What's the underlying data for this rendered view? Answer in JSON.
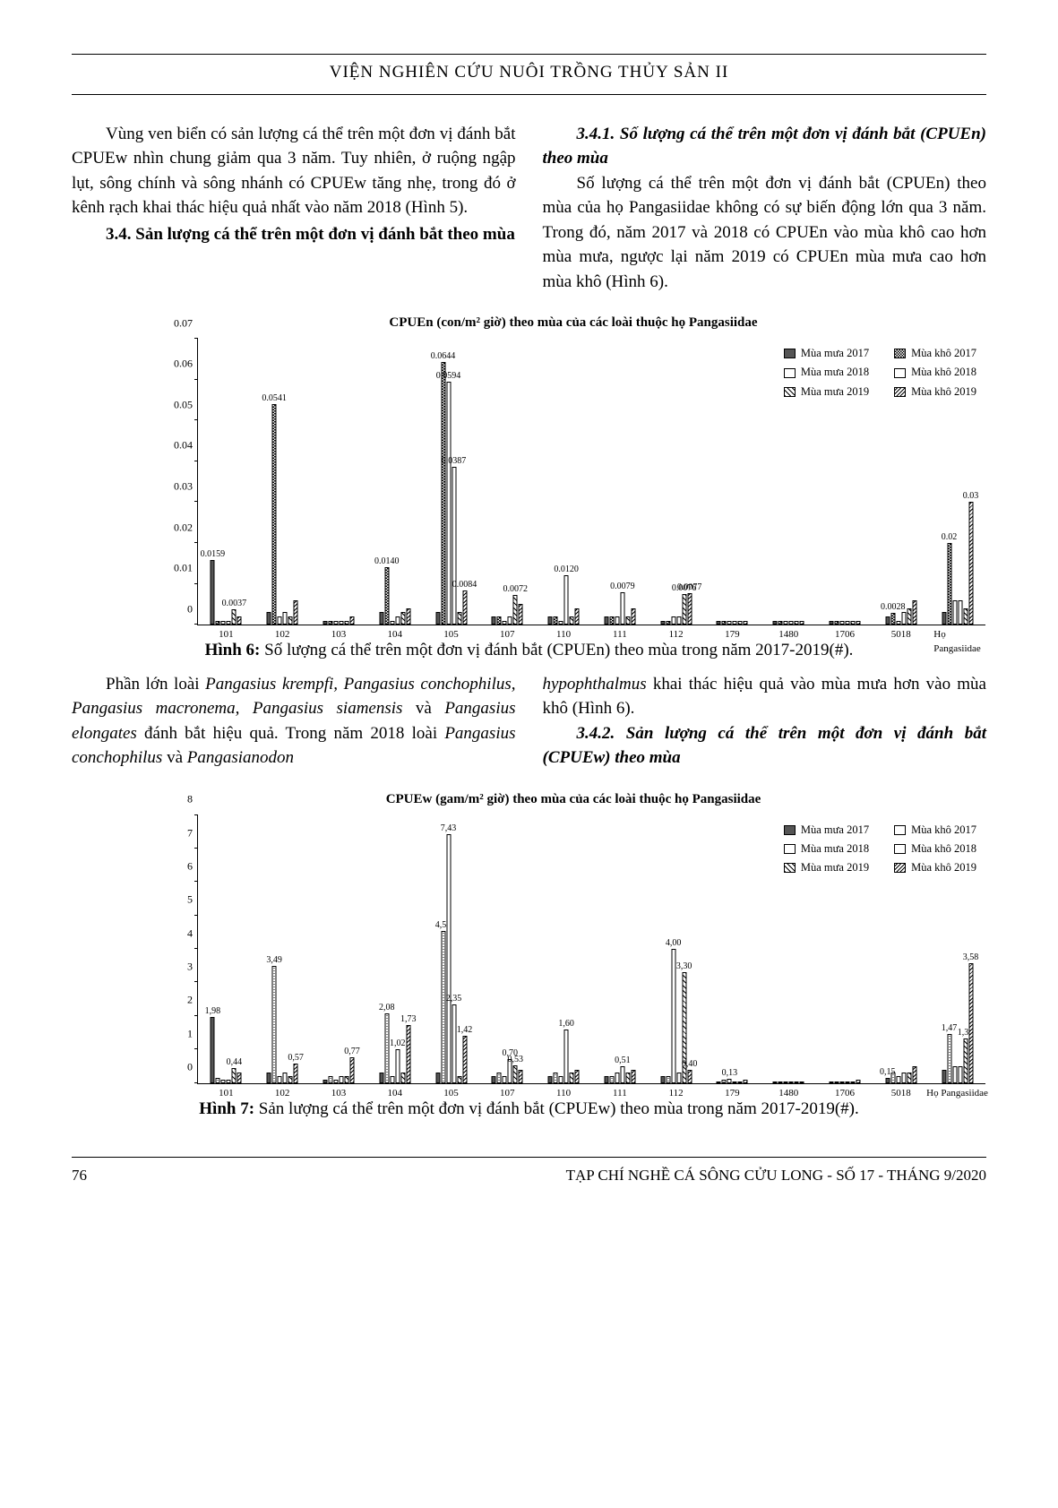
{
  "header": {
    "title": "VIỆN NGHIÊN CỨU NUÔI TRỒNG THỦY SẢN II"
  },
  "p1": "Vùng ven biển có sản lượng cá thể trên một đơn vị đánh bắt CPUEw nhìn chung giảm qua 3 năm. Tuy nhiên, ở ruộng ngập lụt, sông chính và sông nhánh có CPUEw tăng nhẹ, trong đó ở kênh rạch khai thác hiệu quả nhất vào năm 2018 (Hình 5).",
  "s34": "3.4. Sản lượng cá thể trên một đơn vị đánh bắt theo mùa",
  "s341": "3.4.1. Số lượng cá thể trên một đơn vị đánh bắt (CPUEn) theo mùa",
  "p2": "Số lượng cá thể trên một đơn vị đánh bắt (CPUEn) theo mùa của họ Pangasiidae không có sự biến động lớn qua 3 năm. Trong đó, năm 2017 và 2018 có CPUEn vào mùa khô cao hơn mùa mưa, ngược lại năm 2019 có CPUEn mùa mưa cao hơn mùa khô (Hình 6).",
  "p3a": "Phần lớn loài ",
  "p3b": "Pangasius krempfi, Pangasius conchophilus, Pangasius macronema, Pangasius siamensis",
  "p3c": " và ",
  "p3d": "Pangasius elongates",
  "p3e": " đánh bắt hiệu quả. Trong năm 2018 loài ",
  "p3f": "Pangasius conchophilus",
  "p3g": " và ",
  "p3h": "Pangasianodon",
  "p4a": "hypophthalmus",
  "p4b": " khai thác hiệu quả vào mùa mưa hơn vào mùa khô (Hình 6).",
  "s342": "3.4.2. Sản lượng cá thể trên một đơn vị đánh bắt (CPUEw) theo mùa",
  "chart6": {
    "title": "CPUEn (con/m² giờ) theo mùa của các loài thuộc họ Pangasiidae",
    "ymax": 0.07,
    "yticks": [
      "0",
      "0.01",
      "0.02",
      "0.03",
      "0.04",
      "0.05",
      "0.06",
      "0.07"
    ],
    "legend": [
      {
        "label": "Mùa mưa 2017",
        "cls": "p-solid"
      },
      {
        "label": "Mùa khô 2017",
        "cls": "p-dots"
      },
      {
        "label": "Mùa mưa 2018",
        "cls": "p-white"
      },
      {
        "label": "Mùa khô 2018",
        "cls": "p-white"
      },
      {
        "label": "Mùa mưa 2019",
        "cls": "p-diag"
      },
      {
        "label": "Mùa khô 2019",
        "cls": "p-hatch"
      }
    ],
    "categories": [
      "101",
      "102",
      "103",
      "104",
      "105",
      "107",
      "110",
      "111",
      "112",
      "179",
      "1480",
      "1706",
      "5018",
      "Họ\nPangasiidae"
    ],
    "series_cls": [
      "p-solid",
      "p-dots",
      "p-white",
      "p-white",
      "p-diag",
      "p-hatch"
    ],
    "data": [
      {
        "vals": [
          0.0159,
          0.001,
          0.001,
          0.001,
          0.0037,
          0.002
        ],
        "labels": [
          "0.0159",
          "",
          "",
          "",
          "0.0037",
          ""
        ]
      },
      {
        "vals": [
          0.003,
          0.0541,
          0.002,
          0.003,
          0.002,
          0.006
        ],
        "labels": [
          "",
          "0.0541",
          "",
          "",
          "",
          ""
        ]
      },
      {
        "vals": [
          0.001,
          0.001,
          0.001,
          0.001,
          0.001,
          0.002
        ],
        "labels": [
          "",
          "",
          "",
          "",
          "",
          ""
        ]
      },
      {
        "vals": [
          0.003,
          0.014,
          0.001,
          0.002,
          0.003,
          0.004
        ],
        "labels": [
          "",
          "0.0140",
          "",
          "",
          "",
          ""
        ]
      },
      {
        "vals": [
          0.003,
          0.0644,
          0.0594,
          0.0387,
          0.003,
          0.0084
        ],
        "labels": [
          "",
          "0.0644",
          "0.0594",
          "0.0387",
          "",
          "0.0084"
        ]
      },
      {
        "vals": [
          0.002,
          0.002,
          0.001,
          0.002,
          0.0072,
          0.005
        ],
        "labels": [
          "",
          "",
          "",
          "",
          "0.0072",
          ""
        ]
      },
      {
        "vals": [
          0.002,
          0.002,
          0.001,
          0.012,
          0.002,
          0.004
        ],
        "labels": [
          "",
          "",
          "",
          "0.0120",
          "",
          ""
        ]
      },
      {
        "vals": [
          0.002,
          0.002,
          0.002,
          0.0079,
          0.002,
          0.004
        ],
        "labels": [
          "",
          "",
          "",
          "0.0079",
          "",
          ""
        ]
      },
      {
        "vals": [
          0.001,
          0.001,
          0.002,
          0.002,
          0.0076,
          0.0077
        ],
        "labels": [
          "",
          "",
          "",
          "",
          "0.0076",
          "0.0077"
        ]
      },
      {
        "vals": [
          0.001,
          0.001,
          0.001,
          0.001,
          0.001,
          0.001
        ],
        "labels": [
          "",
          "",
          "",
          "",
          "",
          ""
        ]
      },
      {
        "vals": [
          0.001,
          0.001,
          0.001,
          0.001,
          0.001,
          0.001
        ],
        "labels": [
          "",
          "",
          "",
          "",
          "",
          ""
        ]
      },
      {
        "vals": [
          0.001,
          0.001,
          0.001,
          0.001,
          0.001,
          0.001
        ],
        "labels": [
          "",
          "",
          "",
          "",
          "",
          ""
        ]
      },
      {
        "vals": [
          0.002,
          0.0028,
          0.001,
          0.003,
          0.004,
          0.006
        ],
        "labels": [
          "",
          "0.0028",
          "",
          "",
          "",
          ""
        ]
      },
      {
        "vals": [
          0.003,
          0.02,
          0.006,
          0.006,
          0.004,
          0.03
        ],
        "labels": [
          "",
          "0.02",
          "",
          "",
          "",
          "0.03"
        ]
      }
    ]
  },
  "cap6b": "Hình 6: ",
  "cap6t": "Số lượng cá thể trên một đơn vị đánh bắt (CPUEn) theo mùa trong năm 2017-2019(#).",
  "chart7": {
    "title": "CPUEw (gam/m² giờ) theo mùa của các loài thuộc họ Pangasiidae",
    "ymax": 8,
    "yticks": [
      "0",
      "1",
      "2",
      "3",
      "4",
      "5",
      "6",
      "7",
      "8"
    ],
    "legend": [
      {
        "label": "Mùa mưa 2017",
        "cls": "p-solid"
      },
      {
        "label": "Mùa khô 2017",
        "cls": "p-white"
      },
      {
        "label": "Mùa mưa 2018",
        "cls": "p-white"
      },
      {
        "label": "Mùa khô 2018",
        "cls": "p-white"
      },
      {
        "label": "Mùa mưa 2019",
        "cls": "p-diag"
      },
      {
        "label": "Mùa khô 2019",
        "cls": "p-hatch"
      }
    ],
    "categories": [
      "101",
      "102",
      "103",
      "104",
      "105",
      "107",
      "110",
      "111",
      "112",
      "179",
      "1480",
      "1706",
      "5018",
      "Họ Pangasiidae"
    ],
    "series_cls": [
      "p-solid",
      "p-ldots",
      "p-white",
      "p-white",
      "p-diag",
      "p-hatch"
    ],
    "data": [
      {
        "vals": [
          1.98,
          0.15,
          0.1,
          0.1,
          0.44,
          0.3
        ],
        "labels": [
          "1,98",
          "",
          "",
          "",
          "0,44",
          ""
        ]
      },
      {
        "vals": [
          0.3,
          3.49,
          0.2,
          0.3,
          0.2,
          0.57
        ],
        "labels": [
          "",
          "3,49",
          "",
          "",
          "",
          "0,57"
        ]
      },
      {
        "vals": [
          0.1,
          0.2,
          0.1,
          0.2,
          0.2,
          0.77
        ],
        "labels": [
          "",
          "",
          "",
          "",
          "",
          "0,77"
        ]
      },
      {
        "vals": [
          0.3,
          2.08,
          0.2,
          1.02,
          0.3,
          1.73
        ],
        "labels": [
          "",
          "2,08",
          "",
          "1,02",
          "",
          "1,73"
        ]
      },
      {
        "vals": [
          0.3,
          4.55,
          7.43,
          2.35,
          0.2,
          1.42
        ],
        "labels": [
          "",
          "4,55",
          "7,43",
          "2,35",
          "",
          "1,42"
        ]
      },
      {
        "vals": [
          0.2,
          0.3,
          0.2,
          0.7,
          0.53,
          0.4
        ],
        "labels": [
          "",
          "",
          "",
          "0,70",
          "0,53",
          ""
        ]
      },
      {
        "vals": [
          0.2,
          0.3,
          0.2,
          1.6,
          0.3,
          0.4
        ],
        "labels": [
          "",
          "",
          "",
          "1,60",
          "",
          ""
        ]
      },
      {
        "vals": [
          0.2,
          0.2,
          0.3,
          0.51,
          0.3,
          0.4
        ],
        "labels": [
          "",
          "",
          "",
          "0,51",
          "",
          ""
        ]
      },
      {
        "vals": [
          0.2,
          0.2,
          4.0,
          0.3,
          3.3,
          0.4
        ],
        "labels": [
          "",
          "",
          "4,00",
          "",
          "3,30",
          "0,40"
        ]
      },
      {
        "vals": [
          0.05,
          0.1,
          0.13,
          0.05,
          0.05,
          0.1
        ],
        "labels": [
          "",
          "",
          "0,13",
          "",
          "",
          ""
        ]
      },
      {
        "vals": [
          0.05,
          0.05,
          0.05,
          0.05,
          0.05,
          0.05
        ],
        "labels": [
          "",
          "",
          "",
          "",
          "",
          ""
        ]
      },
      {
        "vals": [
          0.05,
          0.05,
          0.05,
          0.05,
          0.05,
          0.1
        ],
        "labels": [
          "",
          "",
          "",
          "",
          "",
          ""
        ]
      },
      {
        "vals": [
          0.15,
          0.3,
          0.2,
          0.3,
          0.3,
          0.5
        ],
        "labels": [
          "0,15",
          "",
          "",
          "",
          "",
          ""
        ]
      },
      {
        "vals": [
          0.4,
          1.47,
          0.5,
          0.5,
          1.34,
          3.58
        ],
        "labels": [
          "",
          "1,47",
          "",
          "",
          "1,34",
          "3,58"
        ]
      }
    ]
  },
  "cap7b": "Hình 7: ",
  "cap7t": "Sản lượng cá thể trên một đơn vị đánh bắt (CPUEw) theo mùa trong năm 2017-2019(#).",
  "footer": {
    "page": "76",
    "journal": "TẠP CHÍ NGHỀ CÁ SÔNG CỬU LONG - SỐ 17 - THÁNG 9/2020"
  }
}
